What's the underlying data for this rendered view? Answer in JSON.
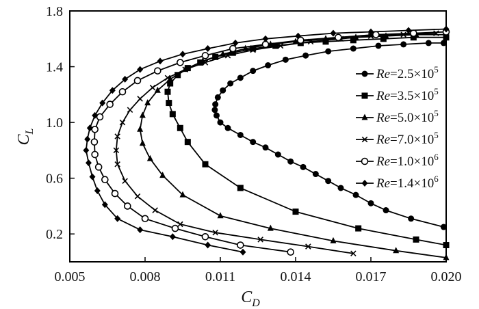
{
  "chart_data": {
    "type": "line",
    "xlabel": "C",
    "xlabel_sub": "D",
    "ylabel": "C",
    "ylabel_sub": "L",
    "xlim": [
      0.005,
      0.02
    ],
    "ylim": [
      0.0,
      1.8
    ],
    "xticks": [
      "0.005",
      "0.008",
      "0.011",
      "0.014",
      "0.017",
      "0.020"
    ],
    "yticks": [
      "0.2",
      "0.6",
      "1.0",
      "1.4",
      "1.8"
    ],
    "grid": false,
    "legend_position": "right",
    "series": [
      {
        "name": {
          "pre": "Re",
          "mid": "=2.5×10",
          "exp": "5"
        },
        "marker": "circle",
        "x": [
          0.0199,
          0.0186,
          0.0176,
          0.017,
          0.0164,
          0.0158,
          0.0153,
          0.0148,
          0.0143,
          0.0138,
          0.0133,
          0.0128,
          0.0123,
          0.0118,
          0.0113,
          0.011,
          0.01085,
          0.01078,
          0.0108,
          0.0109,
          0.0111,
          0.0114,
          0.0118,
          0.0123,
          0.0129,
          0.0136,
          0.0144,
          0.0153,
          0.0163,
          0.0173,
          0.0183,
          0.0193,
          0.0199
        ],
        "y": [
          0.25,
          0.31,
          0.37,
          0.42,
          0.48,
          0.53,
          0.58,
          0.63,
          0.68,
          0.72,
          0.77,
          0.82,
          0.86,
          0.91,
          0.96,
          1.0,
          1.05,
          1.09,
          1.13,
          1.18,
          1.23,
          1.28,
          1.32,
          1.37,
          1.41,
          1.45,
          1.48,
          1.51,
          1.53,
          1.55,
          1.56,
          1.57,
          1.57
        ]
      },
      {
        "name": {
          "pre": "Re",
          "mid": "=3.5×10",
          "exp": "5"
        },
        "marker": "square",
        "x": [
          0.02,
          0.0188,
          0.0165,
          0.014,
          0.0118,
          0.0104,
          0.0097,
          0.0094,
          0.0091,
          0.00895,
          0.0089,
          0.009,
          0.0093,
          0.0097,
          0.0102,
          0.0108,
          0.0115,
          0.0123,
          0.0132,
          0.0142,
          0.0152,
          0.0163,
          0.0175,
          0.0187,
          0.02
        ],
        "y": [
          0.12,
          0.16,
          0.24,
          0.36,
          0.53,
          0.7,
          0.86,
          0.96,
          1.06,
          1.14,
          1.22,
          1.28,
          1.34,
          1.39,
          1.43,
          1.47,
          1.5,
          1.53,
          1.55,
          1.57,
          1.58,
          1.59,
          1.6,
          1.61,
          1.61
        ]
      },
      {
        "name": {
          "pre": "Re",
          "mid": "=5.0×10",
          "exp": "5"
        },
        "marker": "triangle",
        "x": [
          0.02,
          0.018,
          0.0155,
          0.013,
          0.011,
          0.0095,
          0.0087,
          0.0082,
          0.0079,
          0.0078,
          0.0079,
          0.0081,
          0.0085,
          0.009,
          0.0096,
          0.0103,
          0.0111,
          0.012,
          0.013,
          0.014,
          0.0152,
          0.0164,
          0.0176,
          0.0188,
          0.02
        ],
        "y": [
          0.03,
          0.08,
          0.15,
          0.24,
          0.33,
          0.48,
          0.62,
          0.74,
          0.85,
          0.95,
          1.05,
          1.14,
          1.23,
          1.31,
          1.38,
          1.44,
          1.49,
          1.53,
          1.56,
          1.58,
          1.6,
          1.61,
          1.62,
          1.63,
          1.63
        ]
      },
      {
        "name": {
          "pre": "Re",
          "mid": "=7.0×10",
          "exp": "5"
        },
        "marker": "x",
        "x": [
          0.0163,
          0.0145,
          0.0126,
          0.0108,
          0.0094,
          0.0084,
          0.0077,
          0.0072,
          0.0069,
          0.00685,
          0.0069,
          0.0071,
          0.0074,
          0.0078,
          0.0083,
          0.0089,
          0.0096,
          0.0104,
          0.0113,
          0.0123,
          0.0134,
          0.0146,
          0.0158,
          0.017,
          0.0183,
          0.0196
        ],
        "y": [
          0.06,
          0.11,
          0.16,
          0.21,
          0.27,
          0.37,
          0.47,
          0.58,
          0.7,
          0.8,
          0.9,
          1.0,
          1.09,
          1.17,
          1.25,
          1.32,
          1.38,
          1.43,
          1.48,
          1.52,
          1.55,
          1.58,
          1.6,
          1.62,
          1.63,
          1.64
        ]
      },
      {
        "name": {
          "pre": "Re",
          "mid": "=1.0×10",
          "exp": "6"
        },
        "marker": "open-circle",
        "x": [
          0.0138,
          0.0118,
          0.0104,
          0.0092,
          0.008,
          0.0073,
          0.0068,
          0.0064,
          0.00615,
          0.006,
          0.00598,
          0.006,
          0.0062,
          0.0066,
          0.0071,
          0.0077,
          0.0085,
          0.0094,
          0.0104,
          0.0115,
          0.0128,
          0.0142,
          0.0157,
          0.0172,
          0.0187,
          0.02
        ],
        "y": [
          0.07,
          0.12,
          0.18,
          0.24,
          0.31,
          0.4,
          0.49,
          0.59,
          0.68,
          0.77,
          0.86,
          0.95,
          1.04,
          1.13,
          1.22,
          1.3,
          1.37,
          1.43,
          1.48,
          1.53,
          1.56,
          1.59,
          1.61,
          1.63,
          1.64,
          1.65
        ]
      },
      {
        "name": {
          "pre": "Re",
          "mid": "=1.4×10",
          "exp": "6"
        },
        "marker": "diamond",
        "x": [
          0.0119,
          0.0105,
          0.0091,
          0.0078,
          0.0069,
          0.0064,
          0.0061,
          0.0059,
          0.00575,
          0.00565,
          0.0057,
          0.0058,
          0.006,
          0.0063,
          0.0067,
          0.0072,
          0.0078,
          0.0086,
          0.0095,
          0.0105,
          0.0116,
          0.0128,
          0.0141,
          0.0155,
          0.017,
          0.0185,
          0.02
        ],
        "y": [
          0.07,
          0.12,
          0.18,
          0.23,
          0.31,
          0.41,
          0.51,
          0.61,
          0.71,
          0.8,
          0.88,
          0.96,
          1.05,
          1.14,
          1.23,
          1.31,
          1.38,
          1.44,
          1.49,
          1.53,
          1.57,
          1.6,
          1.62,
          1.64,
          1.65,
          1.66,
          1.67
        ]
      }
    ]
  }
}
